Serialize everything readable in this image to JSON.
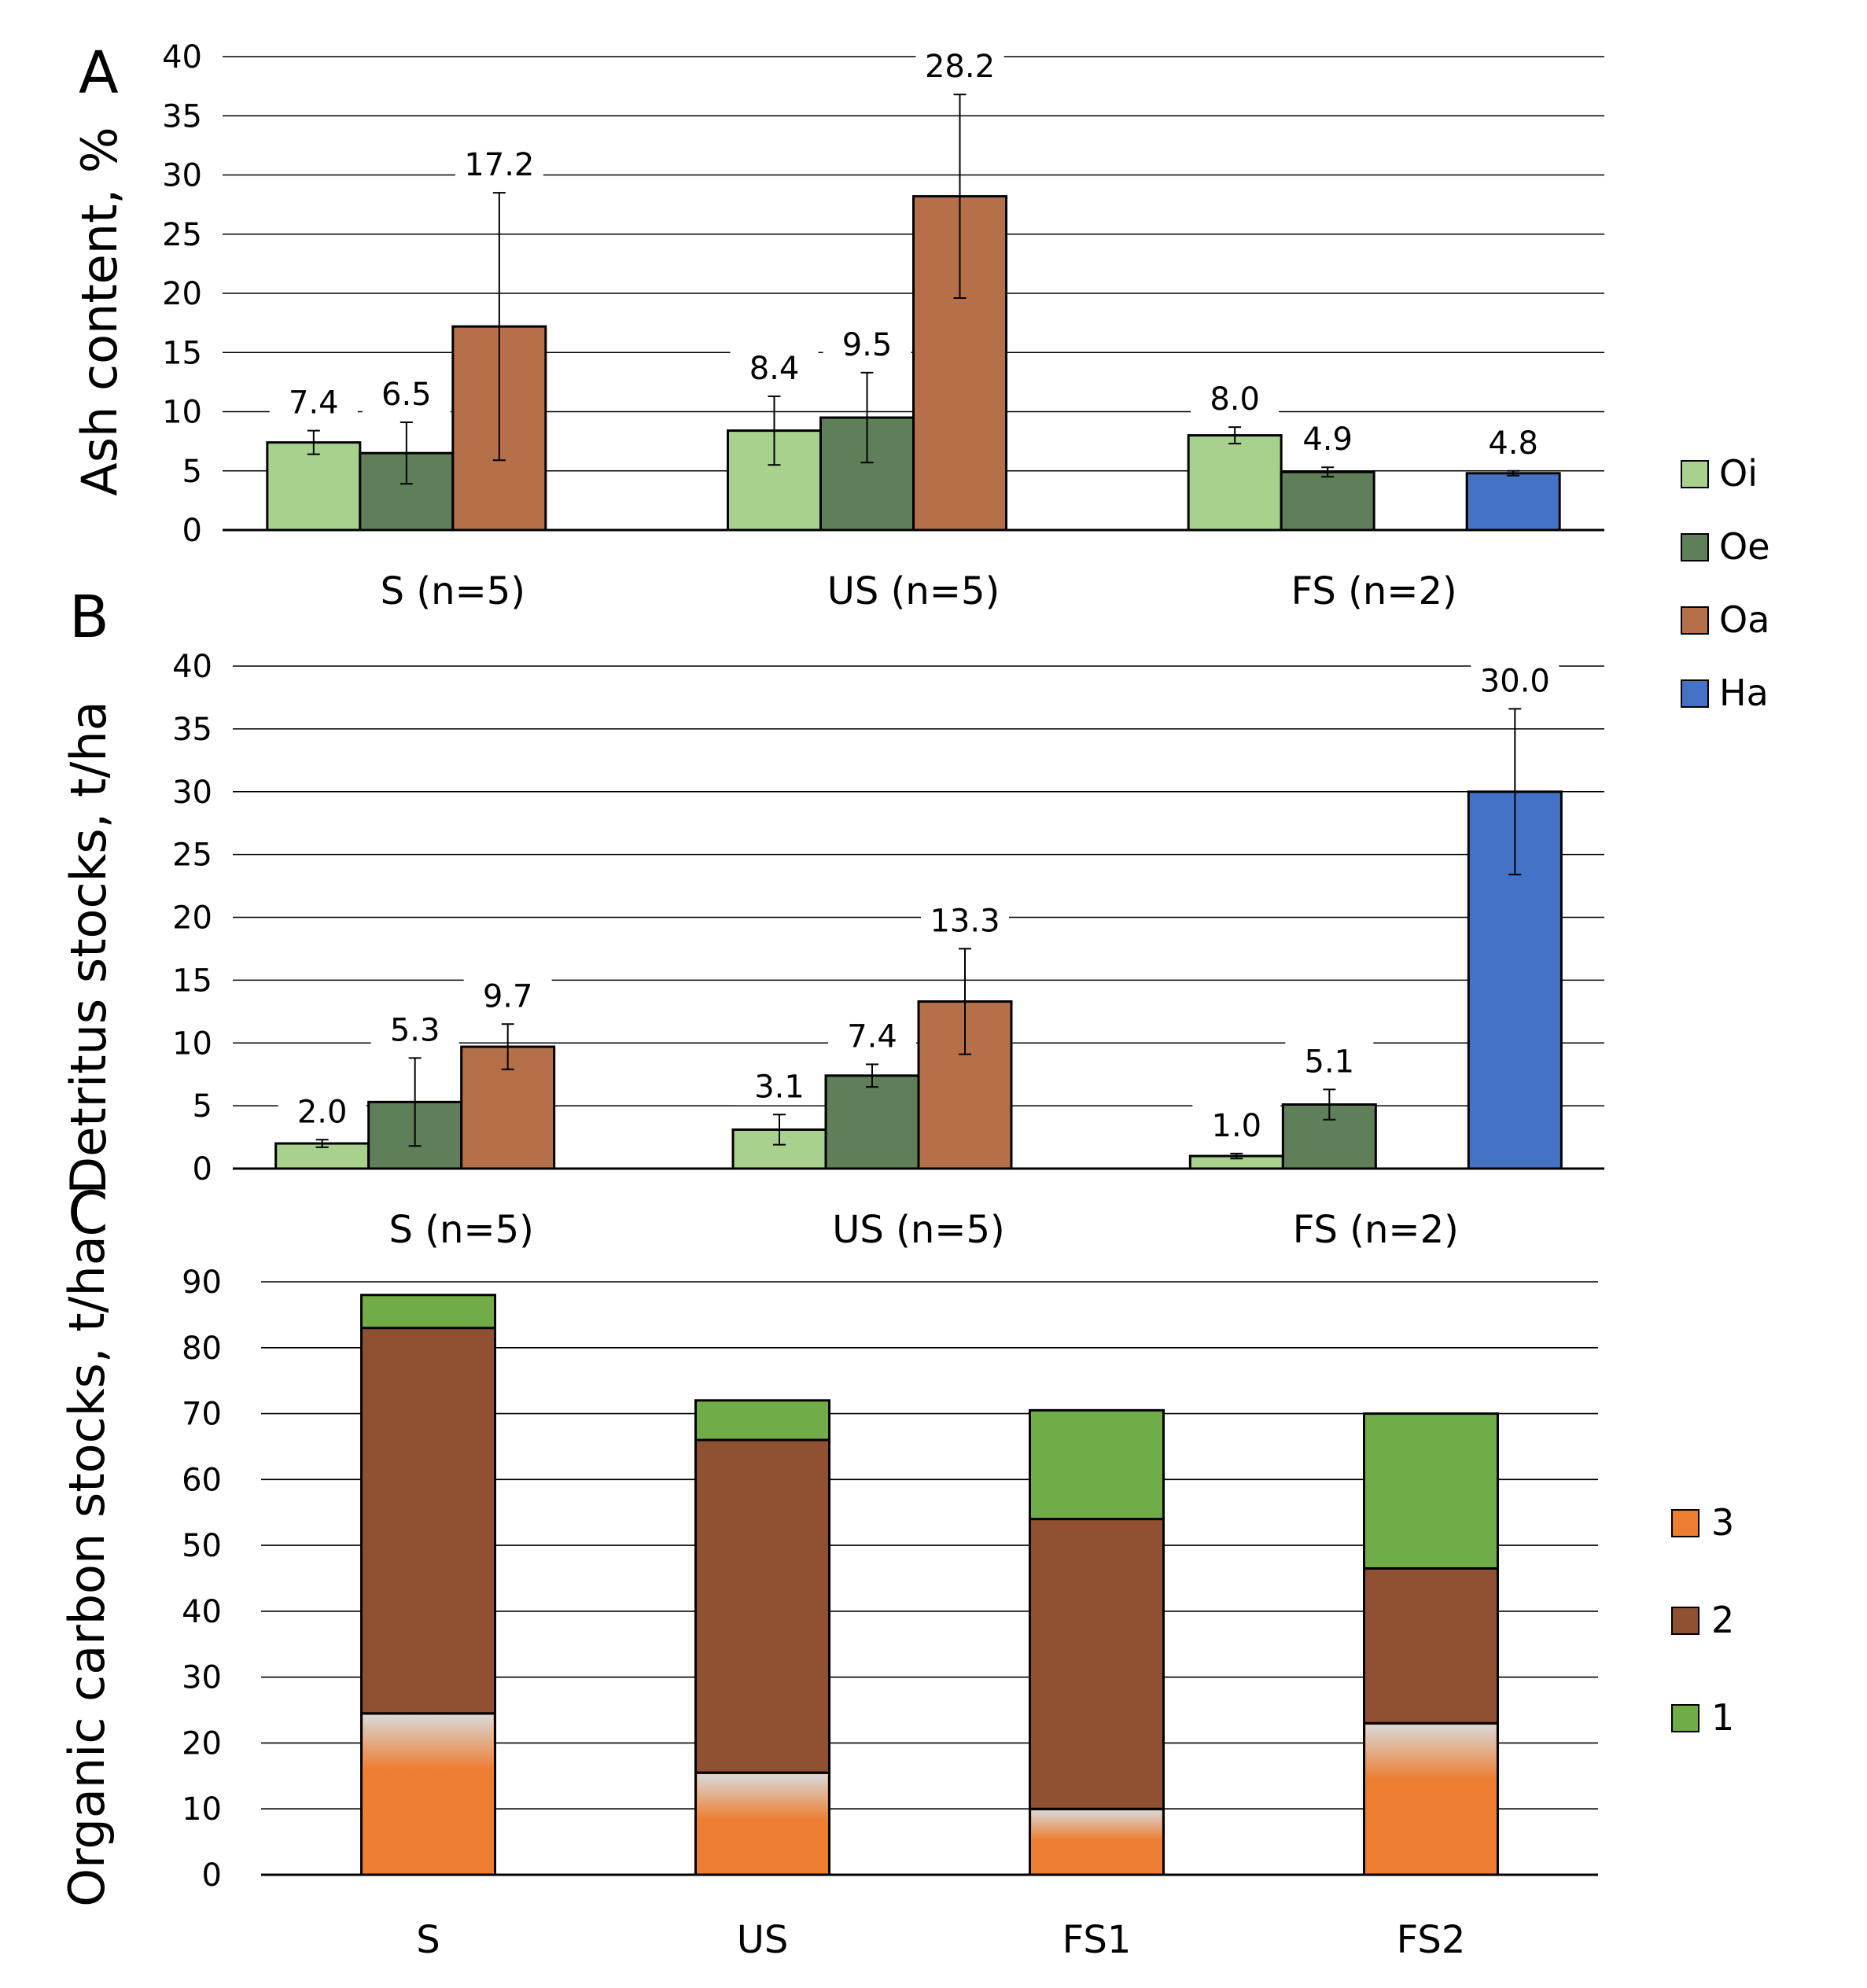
{
  "colors": {
    "Oi": "#a9d18e",
    "Oe": "#5e7f58",
    "Oa": "#b5704a",
    "Ha": "#4472c4",
    "layer3": "#ed7d31",
    "layer2": "#8f5132",
    "layer1": "#70ad47",
    "grid": "#000000"
  },
  "legend_A_B": [
    {
      "key": "Oi",
      "label": "Oi"
    },
    {
      "key": "Oe",
      "label": "Oe"
    },
    {
      "key": "Oa",
      "label": "Oa"
    },
    {
      "key": "Ha",
      "label": "Ha"
    }
  ],
  "legend_C": [
    {
      "key": "layer3",
      "label": "3"
    },
    {
      "key": "layer2",
      "label": "2"
    },
    {
      "key": "layer1",
      "label": "1"
    }
  ],
  "chart_data": [
    {
      "panel": "A",
      "type": "bar",
      "ylabel": "Ash content, %",
      "ylim": [
        0,
        40
      ],
      "yticks": [
        0,
        5,
        10,
        15,
        20,
        25,
        30,
        35,
        40
      ],
      "categories": [
        "S (n=5)",
        "US (n=5)",
        "FS (n=2)"
      ],
      "series": [
        {
          "name": "Oi",
          "values": [
            7.4,
            8.4,
            8.0
          ],
          "errors": [
            1.0,
            2.9,
            0.7
          ]
        },
        {
          "name": "Oe",
          "values": [
            6.5,
            9.5,
            4.9
          ],
          "errors": [
            2.6,
            3.8,
            0.4
          ]
        },
        {
          "name": "Oa",
          "values": [
            17.2,
            28.2,
            null
          ],
          "errors": [
            11.3,
            8.6,
            null
          ]
        },
        {
          "name": "Ha",
          "values": [
            null,
            null,
            4.8
          ],
          "errors": [
            null,
            null,
            0.2
          ]
        }
      ],
      "data_labels": [
        "7.4",
        "6.5",
        "17.2",
        "8.4",
        "9.5",
        "28.2",
        "8.0",
        "4.9",
        "4.8"
      ]
    },
    {
      "panel": "B",
      "type": "bar",
      "ylabel": "Detritus stocks, t/ha",
      "ylim": [
        0,
        40
      ],
      "yticks": [
        0,
        5,
        10,
        15,
        20,
        25,
        30,
        35,
        40
      ],
      "categories": [
        "S (n=5)",
        "US (n=5)",
        "FS (n=2)"
      ],
      "series": [
        {
          "name": "Oi",
          "values": [
            2.0,
            3.1,
            1.0
          ],
          "errors": [
            0.3,
            1.2,
            0.2
          ]
        },
        {
          "name": "Oe",
          "values": [
            5.3,
            7.4,
            5.1
          ],
          "errors": [
            3.5,
            0.9,
            1.2
          ]
        },
        {
          "name": "Oa",
          "values": [
            9.7,
            13.3,
            null
          ],
          "errors": [
            1.8,
            4.2,
            null
          ]
        },
        {
          "name": "Ha",
          "values": [
            null,
            null,
            30.0
          ],
          "errors": [
            null,
            null,
            6.6
          ]
        }
      ],
      "data_labels": [
        "2.0",
        "5.3",
        "9.7",
        "3.1",
        "7.4",
        "13.3",
        "1.0",
        "5.1",
        "30.0"
      ]
    },
    {
      "panel": "C",
      "type": "stacked-bar",
      "ylabel": "Organic carbon stocks, t/ha",
      "ylim": [
        0,
        90
      ],
      "yticks": [
        0,
        10,
        20,
        30,
        40,
        50,
        60,
        70,
        80,
        90
      ],
      "categories": [
        "S",
        "US",
        "FS1",
        "FS2"
      ],
      "series": [
        {
          "name": "3",
          "values": [
            24.5,
            15.5,
            10.0,
            23.0
          ]
        },
        {
          "name": "2",
          "values": [
            58.5,
            50.5,
            44.0,
            23.5
          ]
        },
        {
          "name": "1",
          "values": [
            5.0,
            6.0,
            16.5,
            23.5
          ]
        }
      ]
    }
  ]
}
